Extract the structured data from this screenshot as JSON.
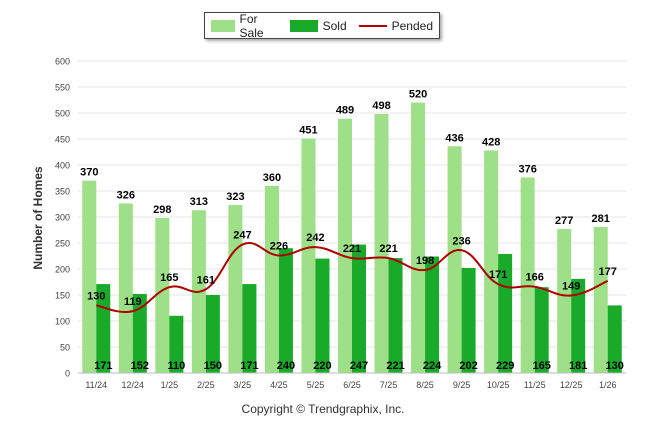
{
  "chart_data": {
    "type": "bar",
    "categories": [
      "11/24",
      "12/24",
      "1/25",
      "2/25",
      "3/25",
      "4/25",
      "5/25",
      "6/25",
      "7/25",
      "8/25",
      "9/25",
      "10/25",
      "11/25",
      "12/25",
      "1/26"
    ],
    "series": [
      {
        "name": "For Sale",
        "type": "bar",
        "color": "#9ee088",
        "values": [
          370,
          326,
          298,
          313,
          323,
          360,
          451,
          489,
          498,
          520,
          436,
          428,
          376,
          277,
          281
        ]
      },
      {
        "name": "Sold",
        "type": "bar",
        "color": "#1aaa2a",
        "values": [
          171,
          152,
          110,
          150,
          171,
          240,
          220,
          247,
          221,
          224,
          202,
          229,
          165,
          181,
          130
        ]
      },
      {
        "name": "Pended",
        "type": "line",
        "color": "#b00000",
        "values": [
          130,
          119,
          165,
          161,
          247,
          226,
          242,
          221,
          221,
          198,
          236,
          171,
          166,
          149,
          177
        ]
      }
    ],
    "ylabel": "Number of Homes",
    "ylim": [
      0,
      600
    ],
    "yticks": [
      0,
      50,
      100,
      150,
      200,
      250,
      300,
      350,
      400,
      450,
      500,
      550,
      600
    ],
    "grid": true,
    "legend_position": "top-center"
  },
  "legend": {
    "for_sale": "For Sale",
    "sold": "Sold",
    "pended": "Pended"
  },
  "footer": {
    "copyright": "Copyright © Trendgraphix, Inc."
  }
}
